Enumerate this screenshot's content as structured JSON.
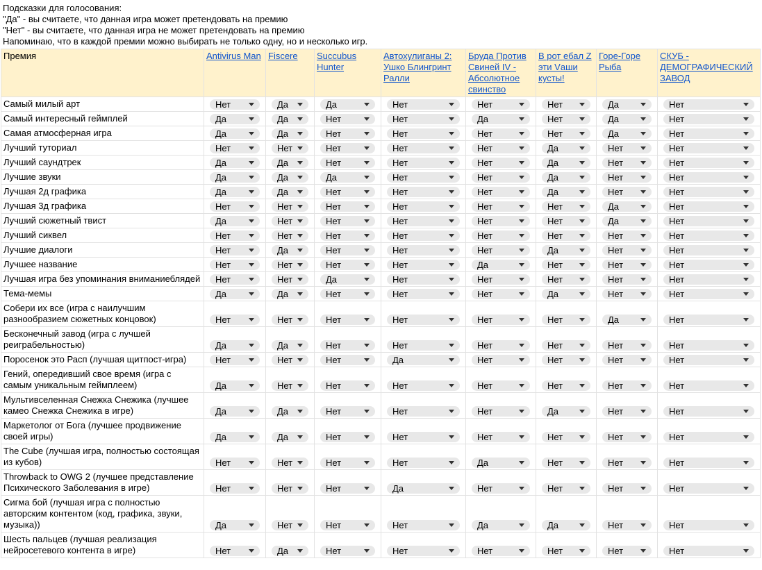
{
  "notes": [
    "Подсказки для голосования:",
    "\"Да\" - вы считаете, что данная игра может претендовать на премию",
    "\"Нет\" - вы считаете, что данная игра не может претендовать на премию",
    "Напоминаю, что в каждой премии можно выбирать не только одну, но и несколько игр."
  ],
  "table": {
    "header": [
      "Премия",
      "Antivirus Man",
      "Fiscere",
      "Succubus Hunter",
      "Автохулиганы 2: Ушко Блингринт Ралли",
      "Бруда Против Свиней IV - Абсолютное свинство",
      "В рот ебал Z эти Vаши кусты!",
      "Горе-Горе Рыба",
      "СКУБ - ДЕМОГРАФИЧЕСКИЙ ЗАВОД"
    ],
    "rows": [
      {
        "award": "Самый милый арт",
        "votes": [
          "Нет",
          "Да",
          "Да",
          "Нет",
          "Нет",
          "Нет",
          "Да",
          "Нет"
        ]
      },
      {
        "award": "Самый интересный геймплей",
        "votes": [
          "Да",
          "Да",
          "Нет",
          "Нет",
          "Да",
          "Нет",
          "Да",
          "Нет"
        ]
      },
      {
        "award": "Самая атмосферная игра",
        "votes": [
          "Да",
          "Да",
          "Нет",
          "Нет",
          "Нет",
          "Нет",
          "Да",
          "Нет"
        ]
      },
      {
        "award": "Лучший туториал",
        "votes": [
          "Нет",
          "Нет",
          "Нет",
          "Нет",
          "Нет",
          "Да",
          "Нет",
          "Нет"
        ]
      },
      {
        "award": "Лучший саундтрек",
        "votes": [
          "Да",
          "Да",
          "Нет",
          "Нет",
          "Нет",
          "Да",
          "Нет",
          "Нет"
        ]
      },
      {
        "award": "Лучшие звуки",
        "votes": [
          "Да",
          "Да",
          "Да",
          "Нет",
          "Нет",
          "Да",
          "Нет",
          "Нет"
        ]
      },
      {
        "award": "Лучшая 2д графика",
        "votes": [
          "Да",
          "Да",
          "Нет",
          "Нет",
          "Нет",
          "Да",
          "Нет",
          "Нет"
        ]
      },
      {
        "award": "Лучшая 3д графика",
        "votes": [
          "Нет",
          "Нет",
          "Нет",
          "Нет",
          "Нет",
          "Нет",
          "Да",
          "Нет"
        ]
      },
      {
        "award": "Лучший сюжетный твист",
        "votes": [
          "Да",
          "Нет",
          "Нет",
          "Нет",
          "Нет",
          "Нет",
          "Да",
          "Нет"
        ]
      },
      {
        "award": "Лучший сиквел",
        "votes": [
          "Нет",
          "Нет",
          "Нет",
          "Нет",
          "Нет",
          "Нет",
          "Нет",
          "Нет"
        ]
      },
      {
        "award": "Лучшие диалоги",
        "votes": [
          "Нет",
          "Да",
          "Нет",
          "Нет",
          "Нет",
          "Да",
          "Нет",
          "Нет"
        ]
      },
      {
        "award": "Лучшее название",
        "votes": [
          "Нет",
          "Нет",
          "Нет",
          "Нет",
          "Да",
          "Нет",
          "Нет",
          "Нет"
        ]
      },
      {
        "award": "Лучшая игра без упоминания вниманиеблядей",
        "votes": [
          "Нет",
          "Нет",
          "Да",
          "Нет",
          "Нет",
          "Нет",
          "Нет",
          "Нет"
        ]
      },
      {
        "award": "Тема-мемы",
        "votes": [
          "Да",
          "Да",
          "Нет",
          "Нет",
          "Нет",
          "Да",
          "Нет",
          "Нет"
        ]
      },
      {
        "award": "Собери их все (игра с наилучшим разнообразием сюжетных концовок)",
        "votes": [
          "Нет",
          "Нет",
          "Нет",
          "Нет",
          "Нет",
          "Нет",
          "Да",
          "Нет"
        ]
      },
      {
        "award": "Бесконечный завод (игра с лучшей реиграбельностью)",
        "votes": [
          "Да",
          "Да",
          "Нет",
          "Нет",
          "Нет",
          "Нет",
          "Нет",
          "Нет"
        ]
      },
      {
        "award": "Поросенок это Расп (лучшая щитпост-игра)",
        "votes": [
          "Нет",
          "Нет",
          "Нет",
          "Да",
          "Нет",
          "Нет",
          "Нет",
          "Нет"
        ]
      },
      {
        "award": "Гений, опередивший свое время (игра с самым уникальным геймплеем)",
        "votes": [
          "Да",
          "Нет",
          "Нет",
          "Нет",
          "Нет",
          "Нет",
          "Нет",
          "Нет"
        ]
      },
      {
        "award": "Мультивселенная Снежка Снежика (лучшее камео Снежка Снежика в игре)",
        "votes": [
          "Да",
          "Да",
          "Нет",
          "Нет",
          "Нет",
          "Да",
          "Нет",
          "Нет"
        ]
      },
      {
        "award": "Маркетолог от Бога (лучшее продвижение своей игры)",
        "votes": [
          "Да",
          "Да",
          "Нет",
          "Нет",
          "Нет",
          "Нет",
          "Нет",
          "Нет"
        ]
      },
      {
        "award": "The Cube (лучшая игра, полностью состоящая из кубов)",
        "votes": [
          "Нет",
          "Нет",
          "Нет",
          "Нет",
          "Да",
          "Нет",
          "Нет",
          "Нет"
        ]
      },
      {
        "award": "Throwback to OWG 2 (лучшее представление Психического Заболевания в игре)",
        "votes": [
          "Нет",
          "Нет",
          "Нет",
          "Да",
          "Нет",
          "Нет",
          "Нет",
          "Нет"
        ]
      },
      {
        "award": "Сигма бой (лучшая игра с полностью авторским контентом (код, графика, звуки, музыка))",
        "votes": [
          "Да",
          "Нет",
          "Нет",
          "Нет",
          "Да",
          "Да",
          "Нет",
          "Нет"
        ]
      },
      {
        "award": "Шесть пальцев (лучшая реализация нейросетевого контента в игре)",
        "votes": [
          "Нет",
          "Да",
          "Нет",
          "Нет",
          "Нет",
          "Нет",
          "Нет",
          "Нет"
        ]
      }
    ]
  }
}
